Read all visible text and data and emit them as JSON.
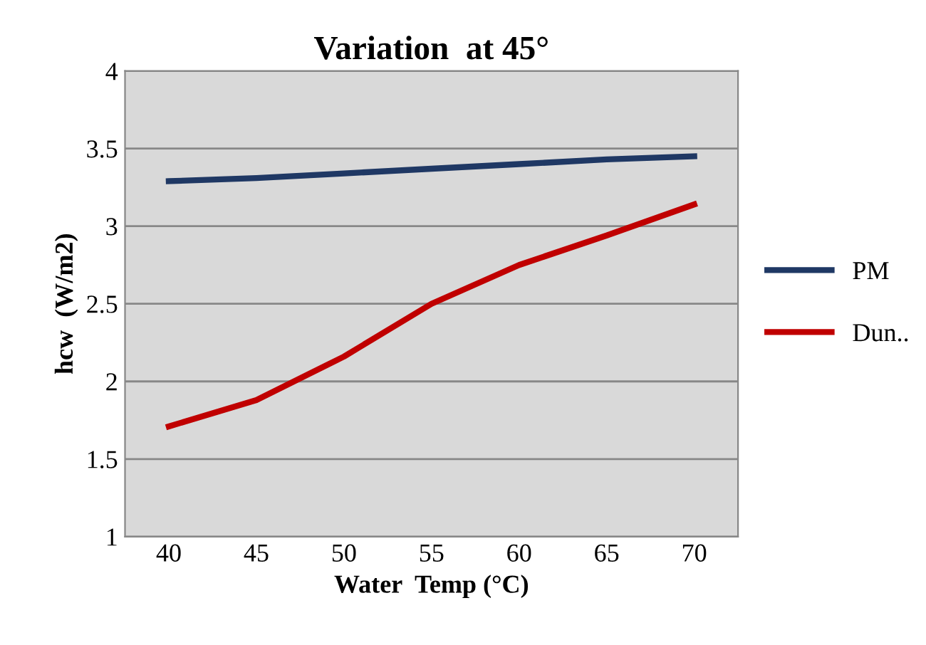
{
  "chart_data": {
    "type": "line",
    "title": "Variation  at 45°",
    "xlabel": "Water  Temp (°C)",
    "ylabel": "hcw  (W/m2)",
    "categories": [
      "40",
      "45",
      "50",
      "55",
      "60",
      "65",
      "70"
    ],
    "series": [
      {
        "name": "PM",
        "color": "#1f3864",
        "values": [
          3.29,
          3.31,
          3.34,
          3.37,
          3.4,
          3.43,
          3.45
        ]
      },
      {
        "name": "Dun..",
        "color": "#c00000",
        "values": [
          1.71,
          1.88,
          2.16,
          2.5,
          2.75,
          2.94,
          3.14
        ]
      }
    ],
    "ylim": [
      1,
      4
    ],
    "yticks": [
      1,
      1.5,
      2,
      2.5,
      3,
      3.5,
      4
    ],
    "grid": "y",
    "legend": "right",
    "marker": "none",
    "line_style": "solid"
  }
}
